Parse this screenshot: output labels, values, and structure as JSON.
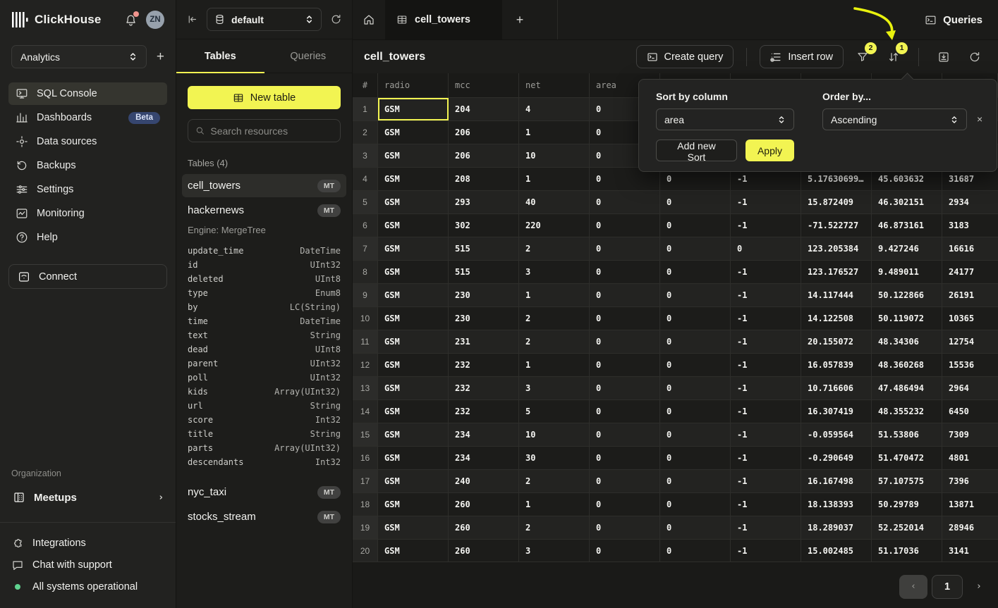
{
  "brand": {
    "name": "ClickHouse"
  },
  "user": {
    "initials": "ZN"
  },
  "workspace": {
    "selected": "Analytics"
  },
  "sidebar": {
    "items": [
      {
        "label": "SQL Console"
      },
      {
        "label": "Dashboards",
        "badge": "Beta"
      },
      {
        "label": "Data sources"
      },
      {
        "label": "Backups"
      },
      {
        "label": "Settings"
      },
      {
        "label": "Monitoring"
      },
      {
        "label": "Help"
      }
    ],
    "connect_label": "Connect",
    "organization_label": "Organization",
    "meetups_label": "Meetups",
    "footer": {
      "integrations": "Integrations",
      "chat": "Chat with support",
      "status": "All systems operational"
    }
  },
  "explorer": {
    "database": "default",
    "tabs": {
      "tables": "Tables",
      "queries": "Queries"
    },
    "new_table_label": "New table",
    "search_placeholder": "Search resources",
    "section_label": "Tables (4)",
    "tables": [
      {
        "name": "cell_towers",
        "badge": "MT"
      },
      {
        "name": "hackernews",
        "badge": "MT",
        "engine": "Engine: MergeTree",
        "columns": [
          [
            "update_time",
            "DateTime"
          ],
          [
            "id",
            "UInt32"
          ],
          [
            "deleted",
            "UInt8"
          ],
          [
            "type",
            "Enum8"
          ],
          [
            "by",
            "LC(String)"
          ],
          [
            "time",
            "DateTime"
          ],
          [
            "text",
            "String"
          ],
          [
            "dead",
            "UInt8"
          ],
          [
            "parent",
            "UInt32"
          ],
          [
            "poll",
            "UInt32"
          ],
          [
            "kids",
            "Array(UInt32)"
          ],
          [
            "url",
            "String"
          ],
          [
            "score",
            "Int32"
          ],
          [
            "title",
            "String"
          ],
          [
            "parts",
            "Array(UInt32)"
          ],
          [
            "descendants",
            "Int32"
          ]
        ]
      },
      {
        "name": "nyc_taxi",
        "badge": "MT"
      },
      {
        "name": "stocks_stream",
        "badge": "MT"
      }
    ]
  },
  "main": {
    "tab_title": "cell_towers",
    "queries_button": "Queries",
    "toolbar": {
      "title": "cell_towers",
      "create_query": "Create query",
      "insert_row": "Insert row",
      "filter_badge": "2",
      "sort_badge": "1"
    },
    "sort_popup": {
      "sort_label": "Sort by column",
      "sort_value": "area",
      "order_label": "Order by...",
      "order_value": "Ascending",
      "close": "×",
      "add_button": "Add new Sort",
      "apply_button": "Apply"
    },
    "grid": {
      "columns": [
        "#",
        "radio",
        "mcc",
        "net",
        "area",
        "",
        "",
        "",
        "",
        ""
      ],
      "rows": [
        [
          "1",
          "GSM",
          "204",
          "4",
          "0",
          "",
          "",
          "",
          "",
          ""
        ],
        [
          "2",
          "GSM",
          "206",
          "1",
          "0",
          "",
          "",
          "",
          "",
          ""
        ],
        [
          "3",
          "GSM",
          "206",
          "10",
          "0",
          "",
          "",
          "",
          "",
          ""
        ],
        [
          "4",
          "GSM",
          "208",
          "1",
          "0",
          "0",
          "-1",
          "5.17630699…",
          "45.603632",
          "31687"
        ],
        [
          "5",
          "GSM",
          "293",
          "40",
          "0",
          "0",
          "-1",
          "15.872409",
          "46.302151",
          "2934"
        ],
        [
          "6",
          "GSM",
          "302",
          "220",
          "0",
          "0",
          "-1",
          "-71.522727",
          "46.873161",
          "3183"
        ],
        [
          "7",
          "GSM",
          "515",
          "2",
          "0",
          "0",
          "0",
          "123.205384",
          "9.427246",
          "16616"
        ],
        [
          "8",
          "GSM",
          "515",
          "3",
          "0",
          "0",
          "-1",
          "123.176527",
          "9.489011",
          "24177"
        ],
        [
          "9",
          "GSM",
          "230",
          "1",
          "0",
          "0",
          "-1",
          "14.117444",
          "50.122866",
          "26191"
        ],
        [
          "10",
          "GSM",
          "230",
          "2",
          "0",
          "0",
          "-1",
          "14.122508",
          "50.119072",
          "10365"
        ],
        [
          "11",
          "GSM",
          "231",
          "2",
          "0",
          "0",
          "-1",
          "20.155072",
          "48.34306",
          "12754"
        ],
        [
          "12",
          "GSM",
          "232",
          "1",
          "0",
          "0",
          "-1",
          "16.057839",
          "48.360268",
          "15536"
        ],
        [
          "13",
          "GSM",
          "232",
          "3",
          "0",
          "0",
          "-1",
          "10.716606",
          "47.486494",
          "2964"
        ],
        [
          "14",
          "GSM",
          "232",
          "5",
          "0",
          "0",
          "-1",
          "16.307419",
          "48.355232",
          "6450"
        ],
        [
          "15",
          "GSM",
          "234",
          "10",
          "0",
          "0",
          "-1",
          "-0.059564",
          "51.53806",
          "7309"
        ],
        [
          "16",
          "GSM",
          "234",
          "30",
          "0",
          "0",
          "-1",
          "-0.290649",
          "51.470472",
          "4801"
        ],
        [
          "17",
          "GSM",
          "240",
          "2",
          "0",
          "0",
          "-1",
          "16.167498",
          "57.107575",
          "7396"
        ],
        [
          "18",
          "GSM",
          "260",
          "1",
          "0",
          "0",
          "-1",
          "18.138393",
          "50.29789",
          "13871"
        ],
        [
          "19",
          "GSM",
          "260",
          "2",
          "0",
          "0",
          "-1",
          "18.289037",
          "52.252014",
          "28946"
        ],
        [
          "20",
          "GSM",
          "260",
          "3",
          "0",
          "0",
          "-1",
          "15.002485",
          "51.17036",
          "3141"
        ]
      ]
    },
    "pagination": {
      "prev": "‹",
      "page": "1",
      "next": "›"
    }
  }
}
